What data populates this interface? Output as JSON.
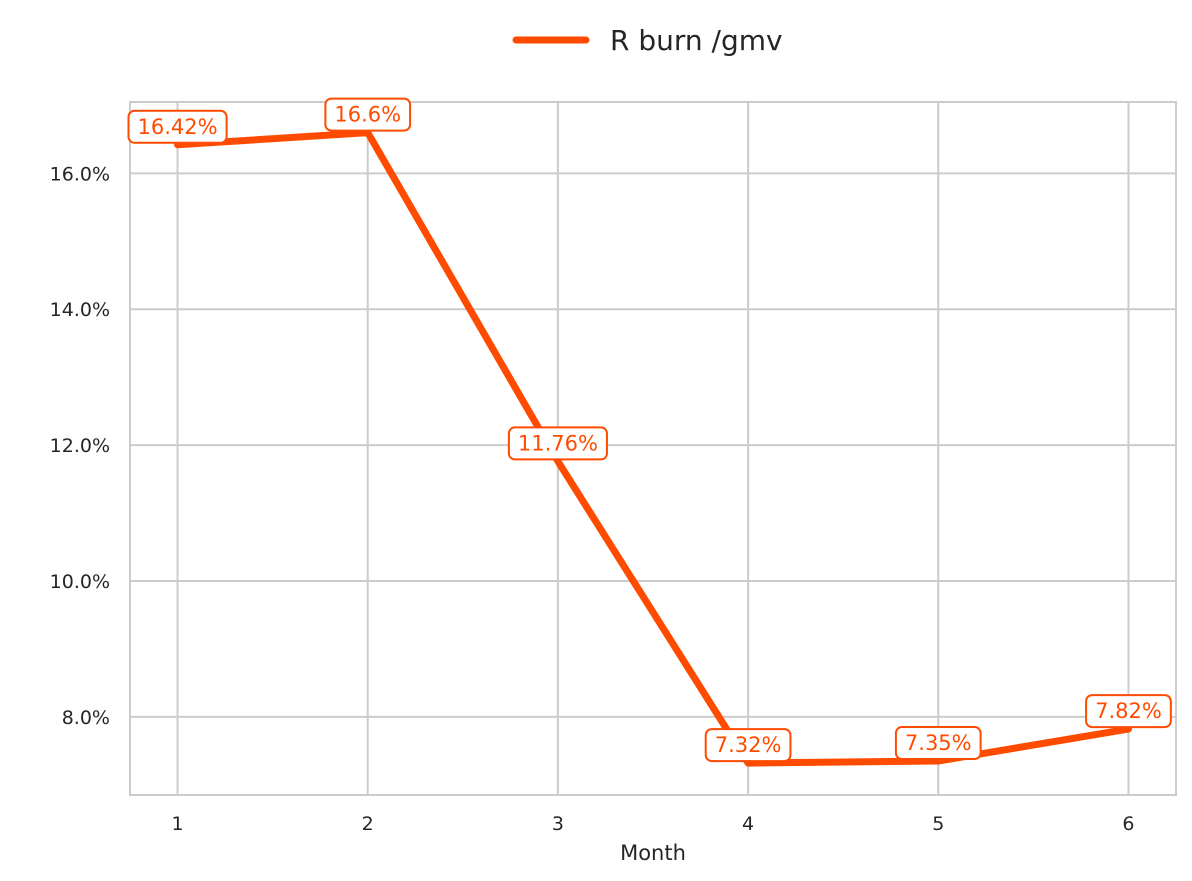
{
  "chart_data": {
    "type": "line",
    "x": [
      1,
      2,
      3,
      4,
      5,
      6
    ],
    "xlabel": "Month",
    "ylabel": "",
    "ylim": [
      6.85,
      17.05
    ],
    "xlim": [
      0.75,
      6.25
    ],
    "yticks": [
      8,
      10,
      12,
      14,
      16
    ],
    "ytick_labels": [
      "8.0%",
      "10.0%",
      "12.0%",
      "14.0%",
      "16.0%"
    ],
    "xticks": [
      1,
      2,
      3,
      4,
      5,
      6
    ],
    "xtick_labels": [
      "1",
      "2",
      "3",
      "4",
      "5",
      "6"
    ],
    "grid": true,
    "legend_position": "top-center",
    "series": [
      {
        "name": "R burn /gmv",
        "color": "#ff4b00",
        "values": [
          16.42,
          16.6,
          11.76,
          7.32,
          7.35,
          7.82
        ],
        "data_labels": [
          "16.42%",
          "16.6%",
          "11.76%",
          "7.32%",
          "7.35%",
          "7.82%"
        ]
      }
    ]
  }
}
